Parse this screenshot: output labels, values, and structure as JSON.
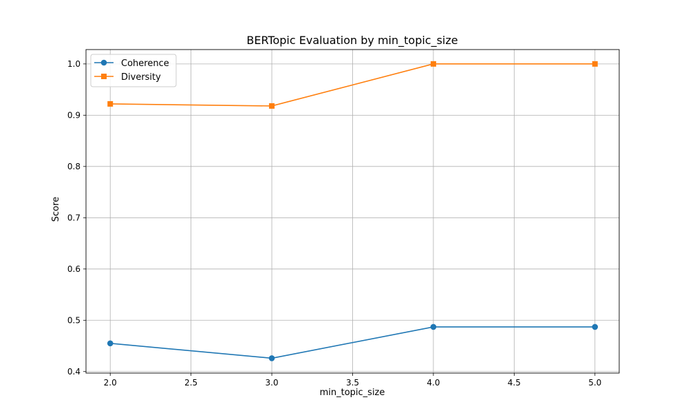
{
  "chart_data": {
    "type": "line",
    "title": "BERTopic Evaluation by min_topic_size",
    "xlabel": "min_topic_size",
    "ylabel": "Score",
    "x": [
      2,
      3,
      4,
      5
    ],
    "xlim": [
      1.85,
      5.15
    ],
    "ylim": [
      0.397,
      1.028
    ],
    "xticks": [
      2.0,
      2.5,
      3.0,
      3.5,
      4.0,
      4.5,
      5.0
    ],
    "xtick_labels": [
      "2.0",
      "2.5",
      "3.0",
      "3.5",
      "4.0",
      "4.5",
      "5.0"
    ],
    "yticks": [
      0.4,
      0.5,
      0.6,
      0.7,
      0.8,
      0.9,
      1.0
    ],
    "ytick_labels": [
      "0.4",
      "0.5",
      "0.6",
      "0.7",
      "0.8",
      "0.9",
      "1.0"
    ],
    "grid": true,
    "legend_position": "top-left",
    "series": [
      {
        "name": "Coherence",
        "values": [
          0.455,
          0.426,
          0.487,
          0.487
        ],
        "color": "#1f77b4",
        "marker": "circle"
      },
      {
        "name": "Diversity",
        "values": [
          0.922,
          0.918,
          1.0,
          1.0
        ],
        "color": "#ff7f0e",
        "marker": "square"
      }
    ]
  }
}
